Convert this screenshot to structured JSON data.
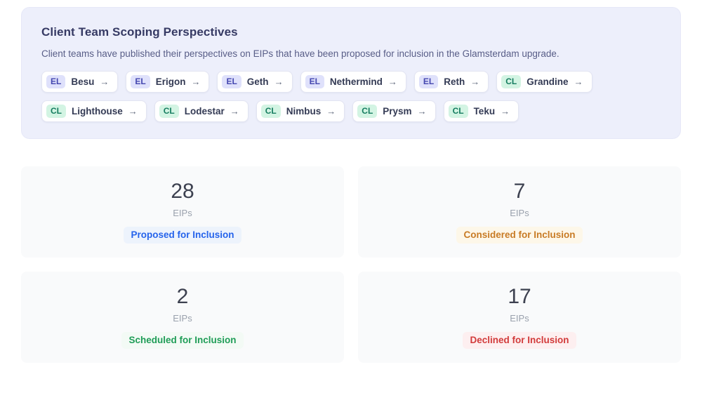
{
  "panel": {
    "title": "Client Team Scoping Perspectives",
    "description": "Client teams have published their perspectives on EIPs that have been proposed for inclusion in the Glamsterdam upgrade.",
    "teams": [
      {
        "type": "EL",
        "name": "Besu",
        "arrow": "→"
      },
      {
        "type": "EL",
        "name": "Erigon",
        "arrow": "→"
      },
      {
        "type": "EL",
        "name": "Geth",
        "arrow": "→"
      },
      {
        "type": "EL",
        "name": "Nethermind",
        "arrow": "→"
      },
      {
        "type": "EL",
        "name": "Reth",
        "arrow": "→"
      },
      {
        "type": "CL",
        "name": "Grandine",
        "arrow": "→"
      },
      {
        "type": "CL",
        "name": "Lighthouse",
        "arrow": "→"
      },
      {
        "type": "CL",
        "name": "Lodestar",
        "arrow": "→"
      },
      {
        "type": "CL",
        "name": "Nimbus",
        "arrow": "→"
      },
      {
        "type": "CL",
        "name": "Prysm",
        "arrow": "→"
      },
      {
        "type": "CL",
        "name": "Teku",
        "arrow": "→"
      }
    ]
  },
  "stats": [
    {
      "value": "28",
      "unit": "EIPs",
      "label": "Proposed for Inclusion",
      "status": "proposed"
    },
    {
      "value": "7",
      "unit": "EIPs",
      "label": "Considered for Inclusion",
      "status": "considered"
    },
    {
      "value": "2",
      "unit": "EIPs",
      "label": "Scheduled for Inclusion",
      "status": "scheduled"
    },
    {
      "value": "17",
      "unit": "EIPs",
      "label": "Declined for Inclusion",
      "status": "declined"
    }
  ],
  "colors": {
    "panel_bg": "#edeffb",
    "el_badge_bg": "#dfe1fb",
    "el_badge_text": "#4548b0",
    "cl_badge_bg": "#d3f4e3",
    "cl_badge_text": "#167d60",
    "proposed_text": "#2563eb",
    "considered_text": "#c87b25",
    "scheduled_text": "#1f9d57",
    "declined_text": "#d23b3b"
  }
}
